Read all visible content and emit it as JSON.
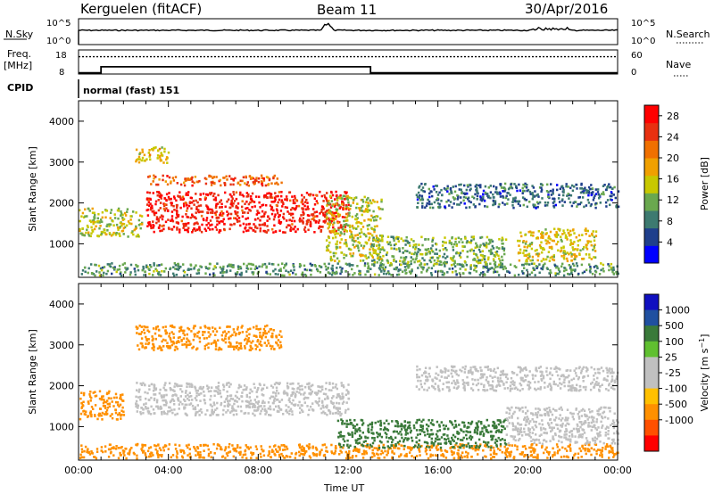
{
  "header": {
    "station": "Kerguelen (fitACF)",
    "beam": "Beam 11",
    "date": "30/Apr/2016"
  },
  "noise_panel": {
    "left_label": "N.Sky",
    "left_ticks": [
      "10^5",
      "10^0"
    ],
    "right_ticks": [
      "10^5",
      "10^0"
    ],
    "right_label": "N.Search"
  },
  "freq_panel": {
    "label_top": "Freq.",
    "label_bottom": "[MHz]",
    "left_ticks": [
      18,
      8
    ],
    "right_ticks": [
      60,
      0
    ],
    "right_label": "Nave",
    "freq_steps": [
      [
        0,
        8.5
      ],
      [
        1.0,
        11.0
      ],
      [
        13.0,
        8.5
      ],
      [
        24.0,
        8.5
      ]
    ],
    "nave_level": 0.72
  },
  "cpid": {
    "label": "CPID",
    "text": "normal (fast) 151"
  },
  "colors": {
    "power_scale": [
      "#0000ff",
      "#1f3f8c",
      "#3d7a70",
      "#6aa84f",
      "#c8c800",
      "#f0a000",
      "#f07000",
      "#e83010",
      "#ff0000"
    ],
    "velocity_scale": [
      "#ff0000",
      "#ff5000",
      "#ff9000",
      "#ffc000",
      "#c0c0c0",
      "#c0c0c0",
      "#60c030",
      "#3a7a3a",
      "#2050a0",
      "#1010c0"
    ],
    "ground_scatter": "#c0c0c0"
  },
  "chart_data": [
    {
      "type": "heatmap",
      "title": "Power",
      "xlabel": "",
      "ylabel": "Slant Range [km]",
      "xlim_hours": [
        0,
        24
      ],
      "ylim_km": [
        180,
        4500
      ],
      "y_ticks": [
        1000,
        2000,
        3000,
        4000
      ],
      "colorbar": {
        "label": "Power [dB]",
        "ticks": [
          4,
          8,
          12,
          16,
          20,
          24,
          28
        ],
        "range": [
          0,
          30
        ]
      },
      "regions": [
        {
          "t": [
            3.0,
            12.0
          ],
          "r": [
            1300,
            2300
          ],
          "value": 27
        },
        {
          "t": [
            3.0,
            9.0
          ],
          "r": [
            2450,
            2700
          ],
          "value": 23
        },
        {
          "t": [
            2.5,
            4.0
          ],
          "r": [
            3000,
            3400
          ],
          "value": 17
        },
        {
          "t": [
            0.0,
            2.8
          ],
          "r": [
            1200,
            1900
          ],
          "value": 14
        },
        {
          "t": [
            0.0,
            24.0
          ],
          "r": [
            250,
            550
          ],
          "value": 10
        },
        {
          "t": [
            11.0,
            13.5
          ],
          "r": [
            600,
            2200
          ],
          "value": 15
        },
        {
          "t": [
            13.0,
            19.0
          ],
          "r": [
            500,
            1200
          ],
          "value": 12
        },
        {
          "t": [
            19.5,
            23.0
          ],
          "r": [
            600,
            1400
          ],
          "value": 16
        },
        {
          "t": [
            15.0,
            24.0
          ],
          "r": [
            1900,
            2500
          ],
          "value": 7
        }
      ]
    },
    {
      "type": "heatmap",
      "title": "Velocity",
      "xlabel": "Time UT",
      "ylabel": "Slant Range [km]",
      "xlim_hours": [
        0,
        24
      ],
      "x_ticks": [
        "00:00",
        "04:00",
        "08:00",
        "12:00",
        "16:00",
        "20:00",
        "00:00"
      ],
      "ylim_km": [
        180,
        4500
      ],
      "y_ticks": [
        1000,
        2000,
        3000,
        4000
      ],
      "colorbar": {
        "label": "Velocity [m s-1]",
        "ticks": [
          1000,
          500,
          100,
          25,
          -25,
          -100,
          -500,
          -1000
        ]
      },
      "regions": [
        {
          "t": [
            2.5,
            12.0
          ],
          "r": [
            1300,
            2100
          ],
          "value": 0,
          "ground": true
        },
        {
          "t": [
            0.0,
            24.0
          ],
          "r": [
            250,
            600
          ],
          "value": -150
        },
        {
          "t": [
            2.5,
            9.0
          ],
          "r": [
            2900,
            3500
          ],
          "value": -200
        },
        {
          "t": [
            11.5,
            19.0
          ],
          "r": [
            500,
            1200
          ],
          "value": 150
        },
        {
          "t": [
            19.0,
            24.0
          ],
          "r": [
            600,
            1500
          ],
          "value": 0,
          "ground": true
        },
        {
          "t": [
            0.0,
            2.0
          ],
          "r": [
            1200,
            1900
          ],
          "value": -300
        },
        {
          "t": [
            15.0,
            24.0
          ],
          "r": [
            1900,
            2500
          ],
          "value": 0,
          "ground": true
        }
      ]
    }
  ]
}
